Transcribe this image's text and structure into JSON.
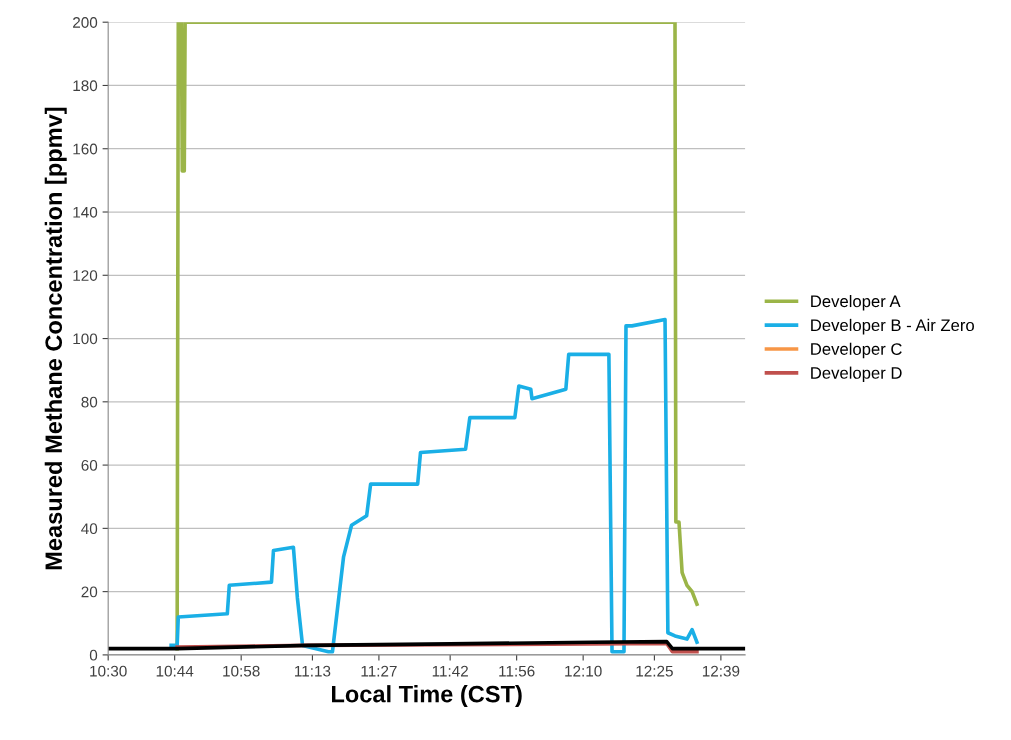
{
  "chart_data": {
    "type": "line",
    "xlabel": "Local Time (CST)",
    "ylabel": "Measured Methane Concentration [ppmv]",
    "xlim": [
      10.5,
      12.735
    ],
    "ylim": [
      0,
      200
    ],
    "xticks": [
      {
        "value": 10.5,
        "label": "10:30"
      },
      {
        "value": 10.7333,
        "label": "10:44"
      },
      {
        "value": 10.9667,
        "label": "10:58"
      },
      {
        "value": 11.2167,
        "label": "11:13"
      },
      {
        "value": 11.45,
        "label": "11:27"
      },
      {
        "value": 11.7,
        "label": "11:42"
      },
      {
        "value": 11.9333,
        "label": "11:56"
      },
      {
        "value": 12.1667,
        "label": "12:10"
      },
      {
        "value": 12.4167,
        "label": "12:25"
      },
      {
        "value": 12.65,
        "label": "12:39"
      }
    ],
    "yticks": [
      0,
      20,
      40,
      60,
      80,
      100,
      120,
      140,
      160,
      180,
      200
    ],
    "grid": "y",
    "legend": "right",
    "marker": "none",
    "line_style": "solid",
    "series": [
      {
        "name": "Developer A",
        "color": "#9bb548",
        "x": [
          10.742,
          10.746,
          10.757,
          10.76,
          10.767,
          10.77,
          12.489,
          12.492,
          12.503,
          12.514,
          12.531,
          12.549,
          12.566
        ],
        "values": [
          2,
          200,
          200,
          153,
          153,
          200,
          200,
          42,
          42,
          26,
          22,
          20,
          16
        ]
      },
      {
        "name": "Developer B - Air Zero",
        "color": "#1aafe6",
        "x": [
          10.721,
          10.742,
          10.746,
          10.918,
          10.925,
          11.073,
          11.08,
          11.15,
          11.164,
          11.182,
          11.273,
          11.287,
          11.326,
          11.354,
          11.407,
          11.421,
          11.586,
          11.596,
          11.754,
          11.769,
          11.927,
          11.941,
          11.983,
          11.987,
          12.106,
          12.116,
          12.257,
          12.268,
          12.31,
          12.317,
          12.338,
          12.454,
          12.464,
          12.489,
          12.531,
          12.549,
          12.566
        ],
        "values": [
          3,
          3,
          12,
          13,
          22,
          23,
          33,
          34,
          18,
          3,
          1,
          1,
          31,
          41,
          44,
          54,
          54,
          64,
          65,
          75,
          75,
          85,
          84,
          81,
          84,
          95,
          95,
          1,
          1,
          104,
          104,
          106,
          7,
          6,
          5,
          8,
          4
        ]
      },
      {
        "name": "Developer C",
        "color": "#f79646"
      },
      {
        "name": "Developer D",
        "color": "#c0504d",
        "x": [
          10.742,
          11.2,
          11.7,
          12.2,
          12.46,
          12.48,
          12.566
        ],
        "values": [
          2.5,
          3,
          3.2,
          3.5,
          3.6,
          1,
          1
        ]
      },
      {
        "color": "#000000",
        "x": [
          10.5,
          10.742,
          11.2,
          11.7,
          12.2,
          12.46,
          12.48,
          12.735
        ],
        "values": [
          2,
          2,
          3,
          3.5,
          4,
          4.2,
          2,
          2
        ]
      }
    ]
  }
}
